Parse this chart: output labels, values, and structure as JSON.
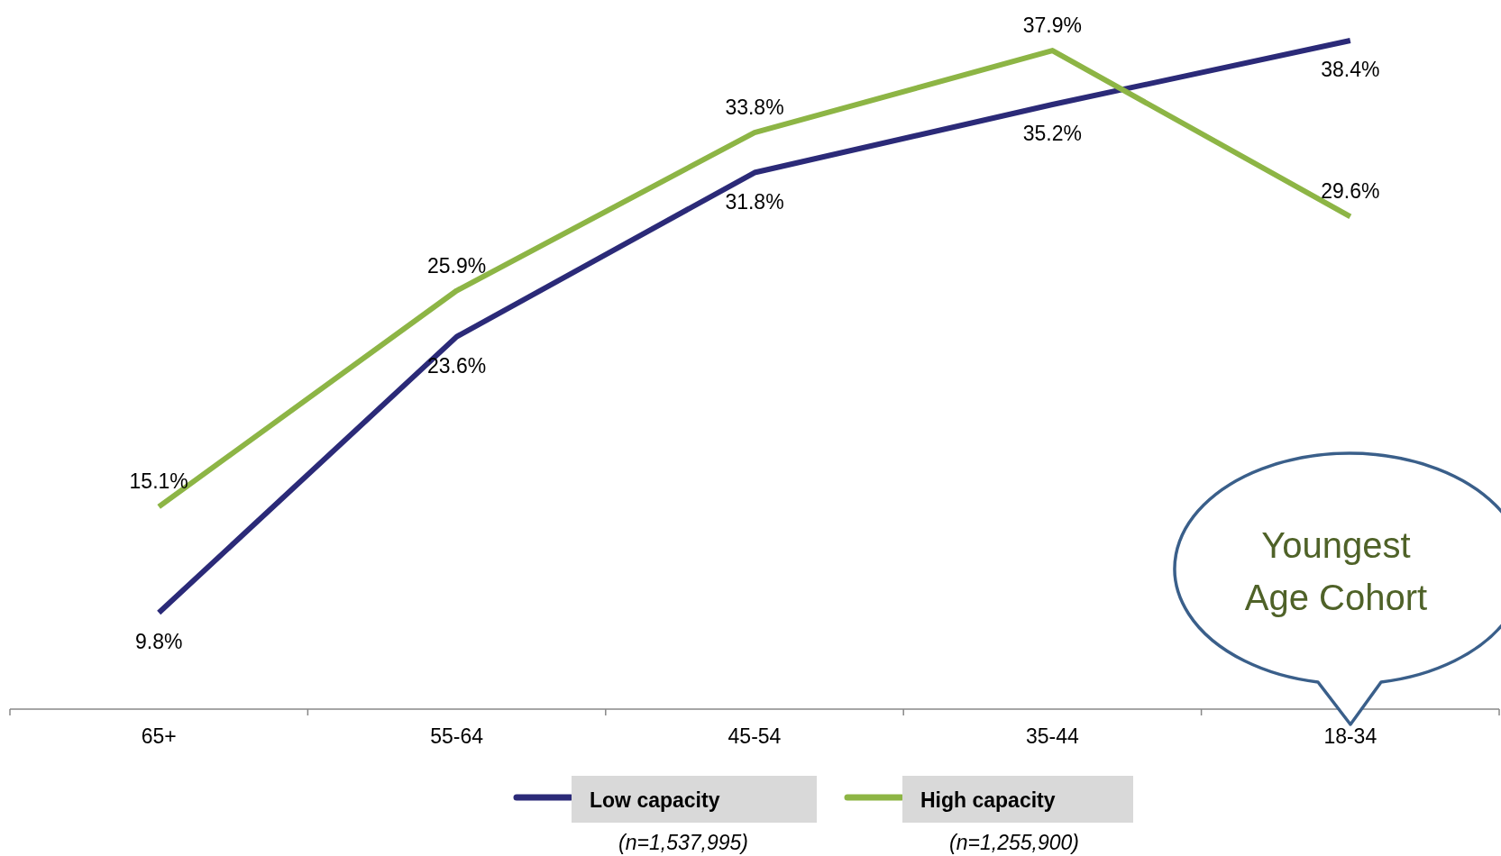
{
  "chart_data": {
    "type": "line",
    "categories": [
      "65+",
      "55-64",
      "45-54",
      "35-44",
      "18-34"
    ],
    "series": [
      {
        "name": "Low capacity",
        "color": "#2b2a78",
        "values": [
          9.8,
          23.6,
          31.8,
          35.2,
          38.4
        ],
        "value_labels": [
          "9.8%",
          "23.6%",
          "31.8%",
          "35.2%",
          "38.4%"
        ]
      },
      {
        "name": "High capacity",
        "color": "#8db545",
        "values": [
          15.1,
          25.9,
          33.8,
          37.9,
          29.6
        ],
        "value_labels": [
          "15.1%",
          "25.9%",
          "33.8%",
          "37.9%",
          "29.6%"
        ]
      }
    ],
    "legend": "bottom",
    "marker": "none",
    "annotations": [
      "Youngest Age Cohort",
      "(n=1,537,995)",
      "(n=1,255,900)"
    ]
  }
}
